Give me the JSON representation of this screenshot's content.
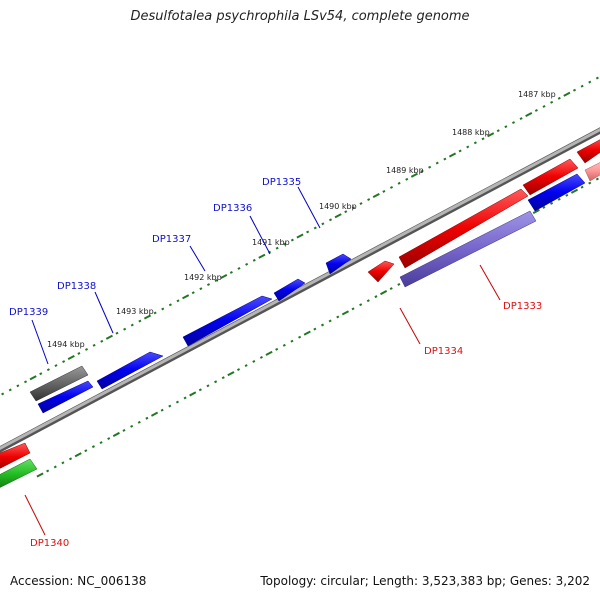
{
  "title": "Desulfotalea psychrophila LSv54, complete genome",
  "footer": {
    "accession": "Accession: NC_006138",
    "summary": "Topology: circular; Length: 3,523,383 bp; Genes: 3,202"
  },
  "colors": {
    "forward_gene": "#0000ee",
    "reverse_gene": "#ee0000",
    "pseudo_gene": "#666666",
    "reverse_faded": "#7766cc",
    "rna_gene": "#22bb22",
    "tick": "#227722",
    "backbone": "#8a8a8a",
    "forward_label": "#1010cc",
    "reverse_label": "#dd1111"
  },
  "kbp_labels": [
    "1487 kbp",
    "1488 kbp",
    "1489 kbp",
    "1490 kbp",
    "1491 kbp",
    "1492 kbp",
    "1493 kbp",
    "1494 kbp"
  ],
  "genes": {
    "forward": [
      "DP1339",
      "DP1338",
      "DP1337",
      "DP1336",
      "DP1335"
    ],
    "reverse": [
      "DP1334",
      "DP1333",
      "DP1340"
    ]
  }
}
